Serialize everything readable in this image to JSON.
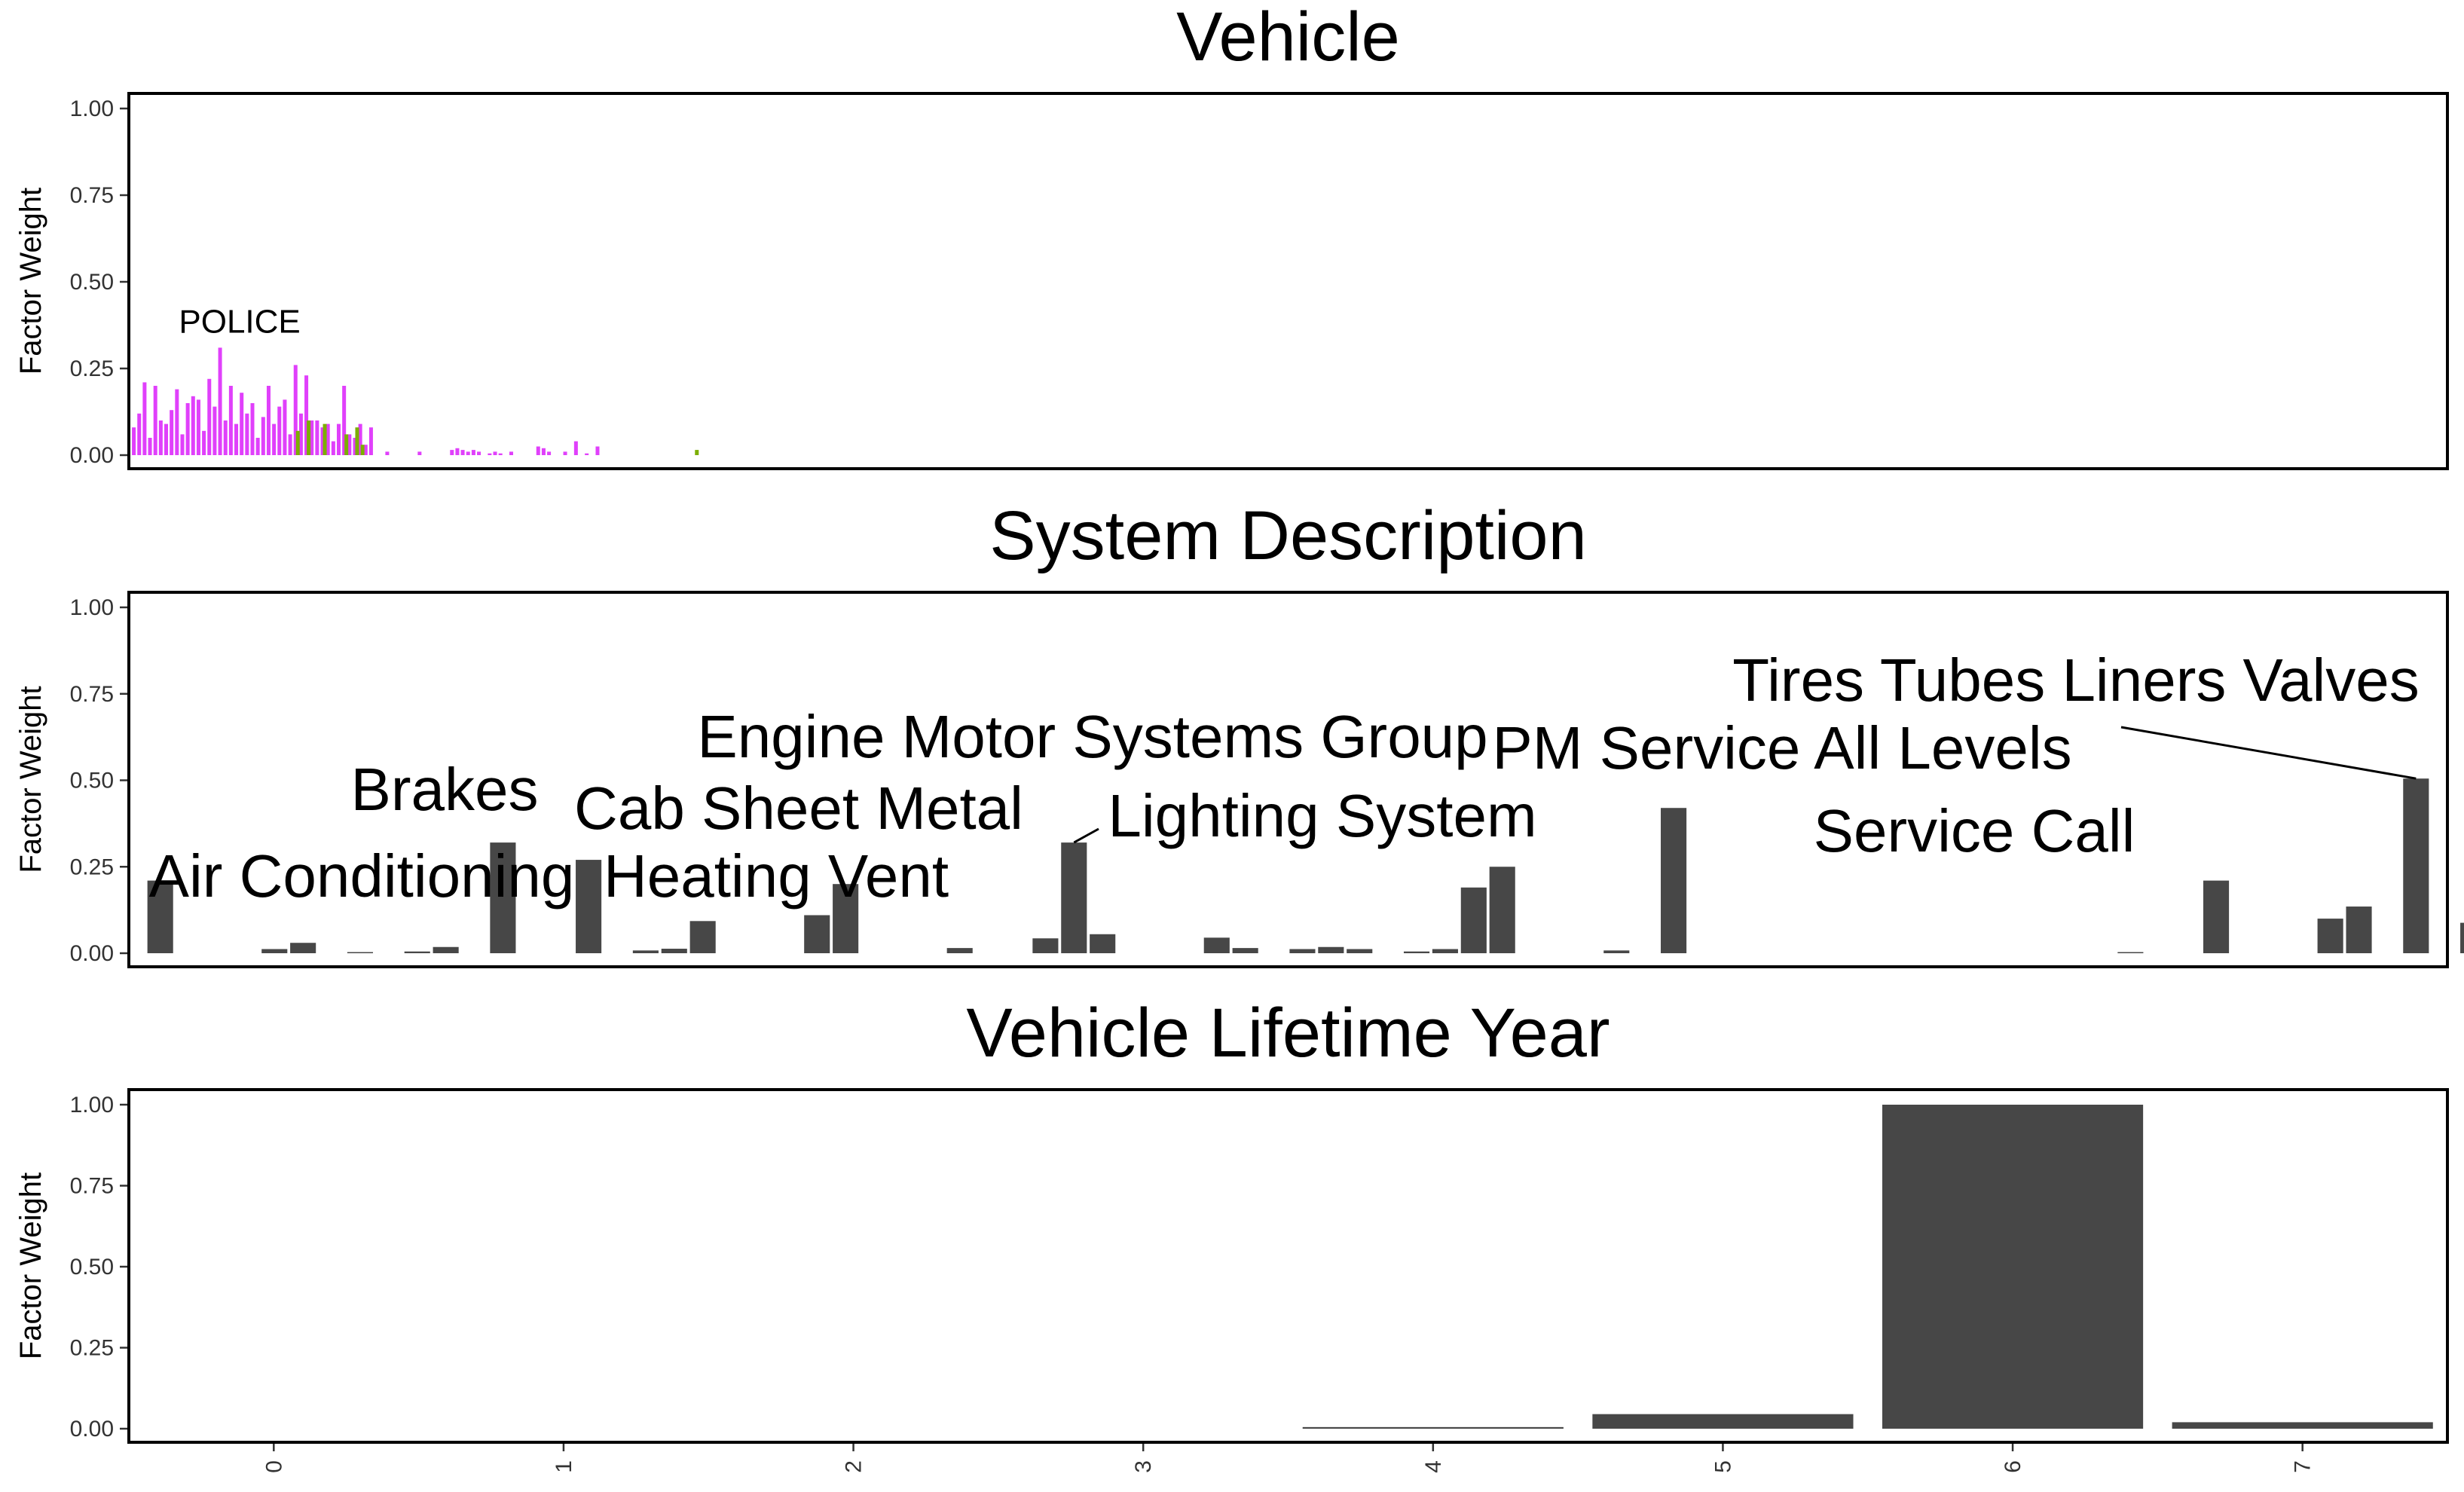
{
  "chart_data": [
    {
      "type": "bar",
      "title": "Vehicle",
      "ylabel": "Factor Weight",
      "xlabel": "",
      "ylim": [
        0,
        1.0
      ],
      "yticks": [
        "0.00",
        "0.25",
        "0.50",
        "0.75",
        "1.00"
      ],
      "grid": false,
      "bar_label_size": "small",
      "colors": {
        "primary": "#e040fb",
        "secondary": "#7cae00"
      },
      "values": [
        0.08,
        0.12,
        0.21,
        0.05,
        0.2,
        0.1,
        0.09,
        0.13,
        0.19,
        0.06,
        0.15,
        0.17,
        0.16,
        0.07,
        0.22,
        0.14,
        0.31,
        0.1,
        0.2,
        0.09,
        0.18,
        0.12,
        0.15,
        0.05,
        0.11,
        0.2,
        0.09,
        0.14,
        0.16,
        0.06,
        0.26,
        0.12,
        0.23,
        0.1,
        0.1,
        0.08,
        0.09,
        0.04,
        0.09,
        0.2,
        0.06,
        0.05,
        0.09,
        0.03,
        0.08,
        0,
        0,
        0.01,
        0,
        0,
        0,
        0,
        0,
        0.01,
        0,
        0,
        0,
        0,
        0,
        0.015,
        0.02,
        0.015,
        0.01,
        0.015,
        0.01,
        0,
        0.005,
        0.01,
        0.005,
        0,
        0.01,
        0,
        0,
        0,
        0,
        0.025,
        0.02,
        0.01,
        0,
        0,
        0.01,
        0,
        0.04,
        0,
        0.005,
        0,
        0.025,
        0,
        0,
        0,
        0,
        0,
        0,
        0,
        0,
        0,
        0,
        0,
        0,
        0,
        0,
        0,
        0,
        0,
        0
      ],
      "secondary_values": [
        {
          "index": 30,
          "value": 0.07
        },
        {
          "index": 32,
          "value": 0.1
        },
        {
          "index": 35,
          "value": 0.09
        },
        {
          "index": 39,
          "value": 0.06
        },
        {
          "index": 41,
          "value": 0.08
        },
        {
          "index": 42,
          "value": 0.03
        },
        {
          "index": 104,
          "value": 0.015
        }
      ],
      "xlim": [
        0,
        430
      ],
      "bar_labels": [
        {
          "index": 16,
          "text": "POLICE",
          "value": 0.31
        }
      ]
    },
    {
      "type": "bar",
      "title": "System Description",
      "ylabel": "Factor Weight",
      "xlabel": "",
      "ylim": [
        0,
        1.0
      ],
      "yticks": [
        "0.00",
        "0.25",
        "0.50",
        "0.75",
        "1.00"
      ],
      "grid": false,
      "bar_label_size": "large",
      "colors": {
        "primary": "#474747"
      },
      "values": [
        0.21,
        0,
        0,
        0,
        0.012,
        0.03,
        0,
        0.002,
        0,
        0.005,
        0.018,
        0,
        0.32,
        0,
        0,
        0.27,
        0,
        0.008,
        0.013,
        0.093,
        0,
        0,
        0,
        0.11,
        0.2,
        0,
        0,
        0,
        0.015,
        0,
        0,
        0.043,
        0.32,
        0.055,
        0,
        0,
        0,
        0.045,
        0.015,
        0,
        0.012,
        0.018,
        0.012,
        0,
        0.005,
        0.012,
        0.19,
        0.25,
        0,
        0,
        0,
        0.008,
        0,
        0.42,
        0,
        0,
        0,
        0,
        0,
        0,
        0,
        0,
        0,
        0,
        0,
        0,
        0,
        0,
        0,
        0.002,
        0,
        0,
        0.21,
        0,
        0,
        0,
        0.1,
        0.135,
        0,
        0.505,
        0,
        0.088,
        0.015,
        0,
        0,
        0,
        0,
        0,
        0,
        0.028,
        0.005
      ],
      "xlim": [
        -1.1,
        80.1
      ],
      "bar_labels": [
        {
          "index": 0,
          "text": "Air Conditioning",
          "value": 0.21
        },
        {
          "index": 12,
          "text": "Brakes",
          "value": 0.32
        },
        {
          "index": 15,
          "text": "Cab Sheet Metal",
          "value": 0.27
        },
        {
          "index": 19,
          "text": "Heating Vent",
          "value": 0.093
        },
        {
          "index": 32,
          "text": "Engine Motor Systems Group",
          "value": 0.32
        },
        {
          "index": 47,
          "text": "Lighting System",
          "value": 0.25
        },
        {
          "index": 53,
          "text": "PM Service All Levels",
          "value": 0.42
        },
        {
          "index": 72,
          "text": "Service Call",
          "value": 0.21
        },
        {
          "index": 79,
          "text": "Tires Tubes Liners Valves",
          "value": 0.505
        }
      ]
    },
    {
      "type": "bar",
      "title": "Vehicle Lifetime Year",
      "ylabel": "Factor Weight",
      "xlabel": "",
      "ylim": [
        0,
        1.0
      ],
      "yticks": [
        "0.00",
        "0.25",
        "0.50",
        "0.75",
        "1.00"
      ],
      "grid": false,
      "colors": {
        "primary": "#474747"
      },
      "categories": [
        "0",
        "1",
        "2",
        "3",
        "4",
        "5",
        "6",
        "7"
      ],
      "values": [
        0,
        0,
        0,
        0,
        0.005,
        0.045,
        1.0,
        0.02
      ]
    }
  ]
}
